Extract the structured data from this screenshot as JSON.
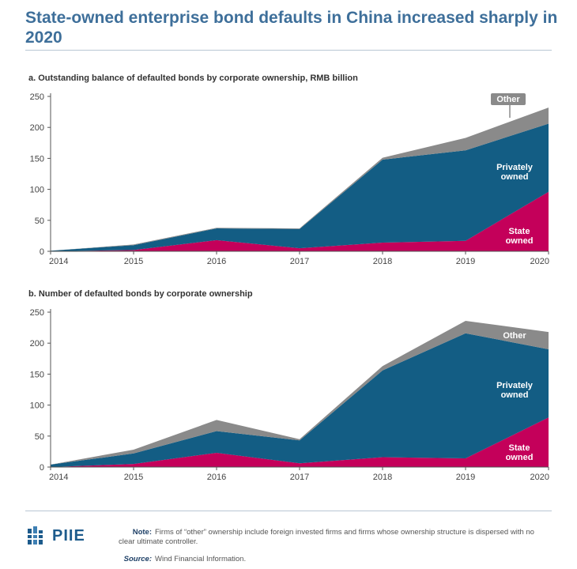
{
  "header": {
    "title": "State-owned enterprise bond defaults in China increased sharply in 2020"
  },
  "colors": {
    "state": "#c4005a",
    "private": "#135d84",
    "other": "#8a8a8a",
    "title": "#3e6f9a"
  },
  "chart_data": [
    {
      "type": "area",
      "stacked": true,
      "title": "a. Outstanding balance of defaulted bonds by corporate ownership, RMB billion",
      "x": [
        "2014",
        "2015",
        "2016",
        "2017",
        "2018",
        "2019",
        "2020"
      ],
      "ylim": [
        0,
        250
      ],
      "yticks": [
        "0",
        "50",
        "100",
        "150",
        "200",
        "250"
      ],
      "series": [
        {
          "name": "State owned",
          "label_lines": [
            "State",
            "owned"
          ],
          "values": [
            0,
            2,
            18,
            5,
            14,
            17,
            96
          ]
        },
        {
          "name": "Privately owned",
          "label_lines": [
            "Privately",
            "owned"
          ],
          "values": [
            1,
            8,
            19,
            31,
            134,
            146,
            110
          ]
        },
        {
          "name": "Other",
          "label_lines": [
            "Other"
          ],
          "values": [
            0,
            1,
            1,
            1,
            3,
            20,
            26
          ]
        }
      ]
    },
    {
      "type": "area",
      "stacked": true,
      "title": "b. Number of defaulted bonds by corporate ownership",
      "x": [
        "2014",
        "2015",
        "2016",
        "2017",
        "2018",
        "2019",
        "2020"
      ],
      "ylim": [
        0,
        250
      ],
      "yticks": [
        "0",
        "50",
        "100",
        "150",
        "200",
        "250"
      ],
      "series": [
        {
          "name": "State owned",
          "label_lines": [
            "State",
            "owned"
          ],
          "values": [
            0,
            5,
            23,
            6,
            16,
            14,
            80
          ]
        },
        {
          "name": "Privately owned",
          "label_lines": [
            "Privately",
            "owned"
          ],
          "values": [
            4,
            17,
            35,
            37,
            140,
            202,
            110
          ]
        },
        {
          "name": "Other",
          "label_lines": [
            "Other"
          ],
          "values": [
            0,
            6,
            18,
            2,
            7,
            20,
            28
          ]
        }
      ]
    }
  ],
  "footer": {
    "logo_text": "PIIE",
    "note_label": "Note:",
    "note_text": "Firms of “other” ownership include foreign invested firms and firms whose ownership structure is dispersed with no clear ultimate controller.",
    "source_label": "Source:",
    "source_text": "Wind Financial Information."
  }
}
